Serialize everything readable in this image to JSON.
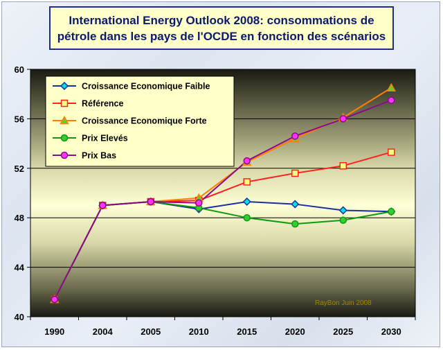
{
  "title_line1": "International Energy Outlook 2008: consommations de",
  "title_line2": "pétrole dans les pays de l'OCDE en fonction des scénarios",
  "credit": "RayBon Juin 2008",
  "colors": {
    "title_text": "#0b1a6e",
    "title_bg": "#ffffc8",
    "grid": "#000000"
  },
  "chart_data": {
    "type": "line",
    "title": "International Energy Outlook 2008: consommations de pétrole dans les pays de l'OCDE en fonction des scénarios",
    "categories": [
      "1990",
      "2004",
      "2005",
      "2010",
      "2015",
      "2020",
      "2025",
      "2030"
    ],
    "ylim": [
      40,
      60
    ],
    "yticks": [
      40,
      44,
      48,
      52,
      56,
      60
    ],
    "ytick_labels": [
      "40",
      "44",
      "48",
      "52",
      "56",
      "60"
    ],
    "grid": true,
    "legend_position": "top-left",
    "series": [
      {
        "name": "Croissance Economique Faible",
        "color": "#1a2fa0",
        "marker": "diamond",
        "marker_fill": "#00e0e0",
        "values": [
          41.4,
          49.0,
          49.3,
          48.7,
          49.3,
          49.1,
          48.6,
          48.5
        ]
      },
      {
        "name": "Référence",
        "color": "#ff2020",
        "marker": "square",
        "marker_fill": "#ffff80",
        "values": [
          41.4,
          49.0,
          49.3,
          49.4,
          50.9,
          51.6,
          52.2,
          53.3
        ]
      },
      {
        "name": "Croissance Economique Forte",
        "color": "#ff7f00",
        "marker": "triangle",
        "marker_fill": "#66cc33",
        "values": [
          41.4,
          49.0,
          49.3,
          49.6,
          52.5,
          54.4,
          56.1,
          58.5
        ]
      },
      {
        "name": "Prix Elevés",
        "color": "#109a10",
        "marker": "circle",
        "marker_fill": "#33cc33",
        "values": [
          41.4,
          49.0,
          49.3,
          48.8,
          48.0,
          47.5,
          47.8,
          48.5
        ]
      },
      {
        "name": "Prix Bas",
        "color": "#8b0a8b",
        "marker": "circle",
        "marker_fill": "#ff33ff",
        "values": [
          41.4,
          49.0,
          49.3,
          49.2,
          52.6,
          54.6,
          56.0,
          57.5
        ]
      }
    ]
  }
}
